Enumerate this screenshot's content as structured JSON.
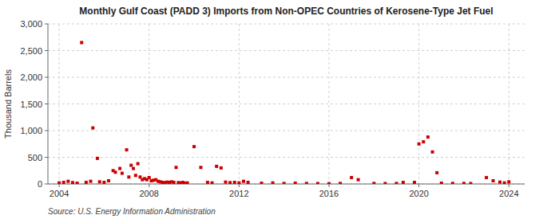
{
  "chart_data": {
    "type": "scatter",
    "title": "Monthly Gulf Coast (PADD 3) Imports from Non-OPEC Countries of Kerosene-Type Jet Fuel",
    "ylabel": "Thousand Barrels",
    "source": "Source: U.S. Energy Information Administration",
    "color": "#cc0000",
    "marker": "square",
    "grid": true,
    "xlim": [
      2003.5,
      2024.7
    ],
    "xticks": [
      2004,
      2008,
      2012,
      2016,
      2020,
      2024
    ],
    "ylim": [
      0,
      3000
    ],
    "yticks": [
      0,
      500,
      {
        "value": 1000,
        "label": "1,000"
      },
      {
        "value": 1500,
        "label": "1,500"
      },
      {
        "value": 2000,
        "label": "2,000"
      },
      {
        "value": 2500,
        "label": "2,500"
      },
      {
        "value": 3000,
        "label": "3,000"
      }
    ],
    "x": [
      2004.0,
      2004.2,
      2004.4,
      2004.6,
      2004.8,
      2005.0,
      2005.2,
      2005.4,
      2005.5,
      2005.7,
      2005.8,
      2006.0,
      2006.2,
      2006.4,
      2006.5,
      2006.7,
      2006.8,
      2007.0,
      2007.1,
      2007.2,
      2007.3,
      2007.4,
      2007.5,
      2007.6,
      2007.7,
      2007.8,
      2007.9,
      2008.0,
      2008.1,
      2008.2,
      2008.3,
      2008.4,
      2008.5,
      2008.6,
      2008.7,
      2008.8,
      2008.9,
      2009.0,
      2009.1,
      2009.2,
      2009.3,
      2009.4,
      2009.5,
      2009.6,
      2009.7,
      2010.0,
      2010.3,
      2010.6,
      2010.8,
      2011.0,
      2011.2,
      2011.4,
      2011.6,
      2011.8,
      2012.0,
      2012.2,
      2012.4,
      2013.0,
      2013.5,
      2014.0,
      2014.5,
      2015.0,
      2015.5,
      2016.0,
      2016.5,
      2017.0,
      2017.3,
      2018.0,
      2018.5,
      2019.0,
      2019.3,
      2019.8,
      2020.0,
      2020.2,
      2020.4,
      2020.6,
      2020.8,
      2021.0,
      2021.5,
      2022.0,
      2022.3,
      2023.0,
      2023.3,
      2023.6,
      2023.8,
      2024.0
    ],
    "values": [
      20,
      30,
      50,
      25,
      15,
      2650,
      30,
      50,
      1050,
      480,
      40,
      30,
      60,
      250,
      220,
      290,
      200,
      640,
      130,
      350,
      290,
      160,
      380,
      130,
      80,
      100,
      80,
      120,
      60,
      70,
      80,
      50,
      40,
      30,
      25,
      35,
      30,
      40,
      30,
      310,
      25,
      20,
      30,
      15,
      20,
      700,
      310,
      30,
      20,
      330,
      300,
      35,
      25,
      30,
      20,
      50,
      30,
      15,
      20,
      10,
      15,
      10,
      8,
      5,
      10,
      120,
      80,
      10,
      8,
      10,
      30,
      30,
      750,
      790,
      880,
      600,
      210,
      15,
      10,
      10,
      8,
      120,
      60,
      35,
      20,
      40
    ]
  }
}
